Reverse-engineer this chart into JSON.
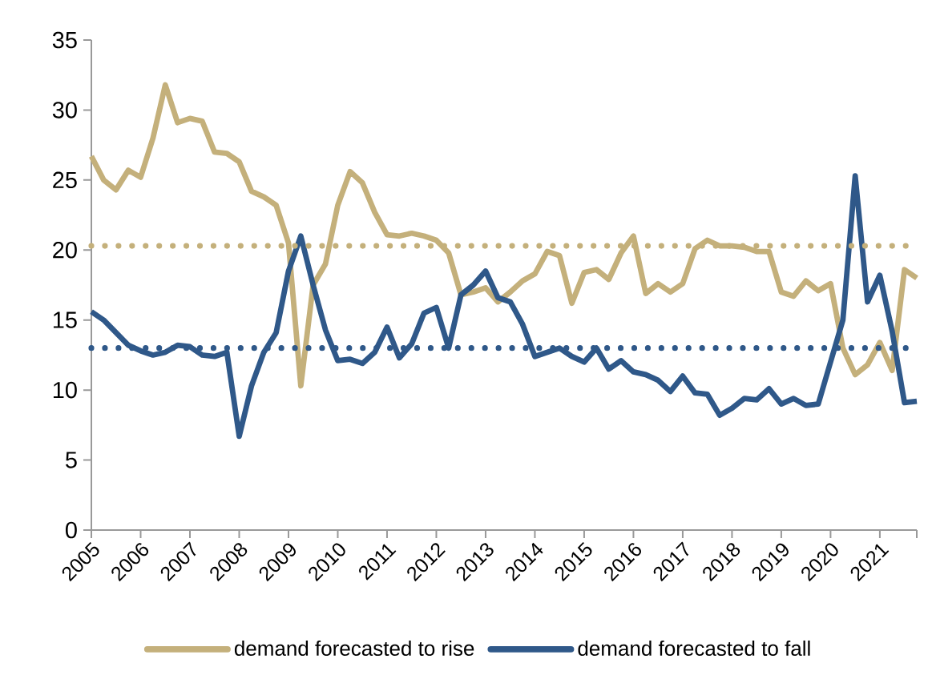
{
  "chart_data": {
    "type": "line",
    "x": [
      2005,
      2005.25,
      2005.5,
      2005.75,
      2006,
      2006.25,
      2006.5,
      2006.75,
      2007,
      2007.25,
      2007.5,
      2007.75,
      2008,
      2008.25,
      2008.5,
      2008.75,
      2009,
      2009.25,
      2009.5,
      2009.75,
      2010,
      2010.25,
      2010.5,
      2010.75,
      2011,
      2011.25,
      2011.5,
      2011.75,
      2012,
      2012.25,
      2012.5,
      2012.75,
      2013,
      2013.25,
      2013.5,
      2013.75,
      2014,
      2014.25,
      2014.5,
      2014.75,
      2015,
      2015.25,
      2015.5,
      2015.75,
      2016,
      2016.25,
      2016.5,
      2016.75,
      2017,
      2017.25,
      2017.5,
      2017.75,
      2018,
      2018.25,
      2018.5,
      2018.75,
      2019,
      2019.25,
      2019.5,
      2019.75,
      2020,
      2020.25,
      2020.5,
      2020.75,
      2021,
      2021.25,
      2021.5,
      2021.75
    ],
    "series": [
      {
        "name": "demand forecasted to rise",
        "color": "#c4b07b",
        "values": [
          26.7,
          25.0,
          24.3,
          25.7,
          25.2,
          28.0,
          31.8,
          29.1,
          29.4,
          29.2,
          27.0,
          26.9,
          26.3,
          24.2,
          23.8,
          23.2,
          20.5,
          10.3,
          17.5,
          19.0,
          23.2,
          25.6,
          24.8,
          22.7,
          21.1,
          21.0,
          21.2,
          21.0,
          20.7,
          19.8,
          16.8,
          17.0,
          17.3,
          16.3,
          17.0,
          17.8,
          18.3,
          19.9,
          19.6,
          16.2,
          18.4,
          18.6,
          17.9,
          19.8,
          21.0,
          16.9,
          17.6,
          17.0,
          17.6,
          20.1,
          20.7,
          20.3,
          20.3,
          20.2,
          19.9,
          19.9,
          17.0,
          16.7,
          17.8,
          17.1,
          17.6,
          13.0,
          11.1,
          11.8,
          13.4,
          11.4,
          18.6,
          18.0
        ]
      },
      {
        "name": "demand forecasted to fall",
        "color": "#2f5889",
        "values": [
          15.6,
          15.0,
          14.1,
          13.2,
          12.8,
          12.5,
          12.7,
          13.2,
          13.1,
          12.5,
          12.4,
          12.7,
          6.7,
          10.3,
          12.7,
          14.1,
          18.5,
          21.0,
          17.5,
          14.3,
          12.1,
          12.2,
          11.9,
          12.7,
          14.5,
          12.3,
          13.3,
          15.5,
          15.9,
          13.0,
          16.8,
          17.5,
          18.5,
          16.6,
          16.3,
          14.7,
          12.4,
          12.7,
          13.0,
          12.4,
          12.0,
          13.0,
          11.5,
          12.1,
          11.3,
          11.1,
          10.7,
          9.9,
          11.0,
          9.8,
          9.7,
          8.2,
          8.7,
          9.4,
          9.3,
          10.1,
          9.0,
          9.4,
          8.9,
          9.0,
          12.0,
          15.0,
          25.3,
          16.3,
          18.2,
          14.2,
          9.1,
          9.2
        ]
      }
    ],
    "ref_lines": [
      {
        "axis": "y",
        "value": 20.3,
        "color": "#c4b07b",
        "line_style": "dotted"
      },
      {
        "axis": "y",
        "value": 13.0,
        "color": "#2f5889",
        "line_style": "dotted"
      }
    ],
    "xlim": [
      2005,
      2021.75
    ],
    "xticks": [
      2005,
      2006,
      2007,
      2008,
      2009,
      2010,
      2011,
      2012,
      2013,
      2014,
      2015,
      2016,
      2017,
      2018,
      2019,
      2020,
      2021,
      {
        "value": 2021.75,
        "label": null
      }
    ],
    "ylim": [
      0,
      35
    ],
    "yticks": [
      0,
      5,
      10,
      15,
      20,
      25,
      30,
      35
    ],
    "grid": false,
    "legend": "bottom",
    "marker": "none",
    "line_style": "solid"
  }
}
